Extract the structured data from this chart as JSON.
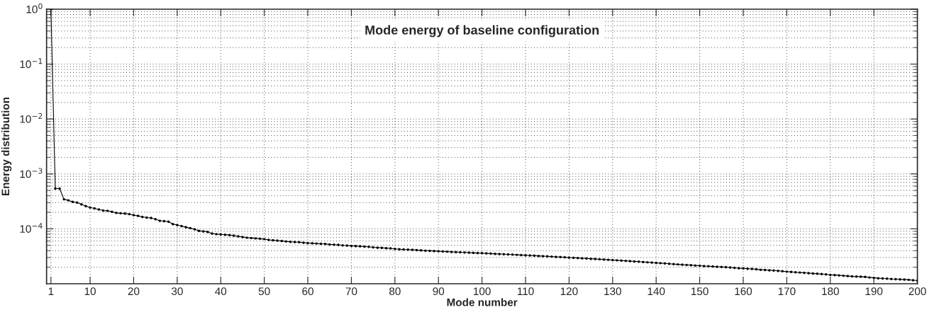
{
  "chart_data": {
    "type": "line",
    "title": "Mode energy of baseline configuration",
    "xlabel": "Mode number",
    "ylabel": "Energy distribution",
    "x": [
      1,
      2,
      3,
      4,
      5,
      6,
      7,
      8,
      9,
      10,
      11,
      12,
      13,
      14,
      15,
      16,
      17,
      18,
      19,
      20,
      21,
      22,
      23,
      24,
      25,
      26,
      27,
      28,
      29,
      30,
      31,
      32,
      33,
      34,
      35,
      36,
      37,
      38,
      39,
      40,
      41,
      42,
      43,
      44,
      45,
      46,
      47,
      48,
      49,
      50,
      51,
      52,
      53,
      54,
      55,
      56,
      57,
      58,
      59,
      60,
      61,
      62,
      63,
      64,
      65,
      66,
      67,
      68,
      69,
      70,
      71,
      72,
      73,
      74,
      75,
      76,
      77,
      78,
      79,
      80,
      81,
      82,
      83,
      84,
      85,
      86,
      87,
      88,
      89,
      90,
      91,
      92,
      93,
      94,
      95,
      96,
      97,
      98,
      99,
      100,
      101,
      102,
      103,
      104,
      105,
      106,
      107,
      108,
      109,
      110,
      111,
      112,
      113,
      114,
      115,
      116,
      117,
      118,
      119,
      120,
      121,
      122,
      123,
      124,
      125,
      126,
      127,
      128,
      129,
      130,
      131,
      132,
      133,
      134,
      135,
      136,
      137,
      138,
      139,
      140,
      141,
      142,
      143,
      144,
      145,
      146,
      147,
      148,
      149,
      150,
      151,
      152,
      153,
      154,
      155,
      156,
      157,
      158,
      159,
      160,
      161,
      162,
      163,
      164,
      165,
      166,
      167,
      168,
      169,
      170,
      171,
      172,
      173,
      174,
      175,
      176,
      177,
      178,
      179,
      180,
      181,
      182,
      183,
      184,
      185,
      186,
      187,
      188,
      189,
      190,
      191,
      192,
      193,
      194,
      195,
      196,
      197,
      198,
      199,
      200
    ],
    "series": [
      {
        "color": "#000000",
        "values": [
          1.0,
          0.00054,
          0.00054,
          0.000345,
          0.00033,
          0.00031,
          0.0003,
          0.00028,
          0.00026,
          0.000245,
          0.000235,
          0.000225,
          0.000215,
          0.000213,
          0.000205,
          0.000195,
          0.000192,
          0.00019,
          0.000185,
          0.000178,
          0.000172,
          0.000165,
          0.00016,
          0.000158,
          0.00015,
          0.00014,
          0.000138,
          0.000135,
          0.000122,
          0.000117,
          0.000112,
          0.000107,
          0.000103,
          9.8e-05,
          9.2e-05,
          9e-05,
          8.8e-05,
          8.2e-05,
          8e-05,
          7.9e-05,
          7.8e-05,
          7.7e-05,
          7.5e-05,
          7.3e-05,
          7.1e-05,
          6.9e-05,
          6.8e-05,
          6.7e-05,
          6.6e-05,
          6.5e-05,
          6.3e-05,
          6.2e-05,
          6.1e-05,
          6e-05,
          5.9e-05,
          5.8e-05,
          5.75e-05,
          5.7e-05,
          5.6e-05,
          5.5e-05,
          5.45e-05,
          5.4e-05,
          5.35e-05,
          5.3e-05,
          5.2e-05,
          5.15e-05,
          5.1e-05,
          5e-05,
          4.95e-05,
          4.9e-05,
          4.85e-05,
          4.8e-05,
          4.75e-05,
          4.7e-05,
          4.6e-05,
          4.55e-05,
          4.5e-05,
          4.45e-05,
          4.4e-05,
          4.3e-05,
          4.25e-05,
          4.2e-05,
          4.18e-05,
          4.15e-05,
          4.1e-05,
          4.05e-05,
          4e-05,
          3.98e-05,
          3.95e-05,
          3.9e-05,
          3.87e-05,
          3.84e-05,
          3.8e-05,
          3.77e-05,
          3.74e-05,
          3.71e-05,
          3.68e-05,
          3.65e-05,
          3.62e-05,
          3.6e-05,
          3.57e-05,
          3.54e-05,
          3.51e-05,
          3.48e-05,
          3.45e-05,
          3.42e-05,
          3.39e-05,
          3.36e-05,
          3.33e-05,
          3.3e-05,
          3.27e-05,
          3.24e-05,
          3.21e-05,
          3.18e-05,
          3.15e-05,
          3.12e-05,
          3.09e-05,
          3.06e-05,
          3.03e-05,
          3e-05,
          2.97e-05,
          2.94e-05,
          2.91e-05,
          2.88e-05,
          2.85e-05,
          2.82e-05,
          2.79e-05,
          2.76e-05,
          2.73e-05,
          2.7e-05,
          2.67e-05,
          2.64e-05,
          2.61e-05,
          2.58e-05,
          2.55e-05,
          2.52e-05,
          2.49e-05,
          2.46e-05,
          2.43e-05,
          2.4e-05,
          2.37e-05,
          2.34e-05,
          2.31e-05,
          2.28e-05,
          2.25e-05,
          2.22e-05,
          2.2e-05,
          2.18e-05,
          2.15e-05,
          2.13e-05,
          2.1e-05,
          2.08e-05,
          2.06e-05,
          2.04e-05,
          2.02e-05,
          2e-05,
          1.98e-05,
          1.95e-05,
          1.92e-05,
          1.9e-05,
          1.88e-05,
          1.86e-05,
          1.83e-05,
          1.8e-05,
          1.78e-05,
          1.76e-05,
          1.74e-05,
          1.72e-05,
          1.69e-05,
          1.66e-05,
          1.64e-05,
          1.62e-05,
          1.6e-05,
          1.58e-05,
          1.56e-05,
          1.54e-05,
          1.52e-05,
          1.5e-05,
          1.48e-05,
          1.45e-05,
          1.44e-05,
          1.42e-05,
          1.4e-05,
          1.38e-05,
          1.36e-05,
          1.35e-05,
          1.34e-05,
          1.33e-05,
          1.3e-05,
          1.28e-05,
          1.26e-05,
          1.25e-05,
          1.24e-05,
          1.22e-05,
          1.21e-05,
          1.2e-05,
          1.19e-05,
          1.18e-05,
          1.16e-05,
          1.14e-05
        ]
      }
    ],
    "log": "y",
    "xlim": [
      0,
      200
    ],
    "ylim": [
      1e-05,
      1
    ],
    "xticks": [
      1,
      10,
      20,
      30,
      40,
      50,
      60,
      70,
      80,
      90,
      100,
      110,
      120,
      130,
      140,
      150,
      160,
      170,
      180,
      190,
      200
    ],
    "yticks": [
      {
        "value": 0.0001,
        "label": "10$^{−4}$"
      },
      {
        "value": 0.001,
        "label": "10$^{−3}$"
      },
      {
        "value": 0.01,
        "label": "10$^{−2}$"
      },
      {
        "value": 0.1,
        "label": "10$^{−1}$"
      },
      {
        "value": 1,
        "label": "10$^{0}$"
      }
    ],
    "grid": true,
    "marker": "circle",
    "line_style": "solid"
  }
}
